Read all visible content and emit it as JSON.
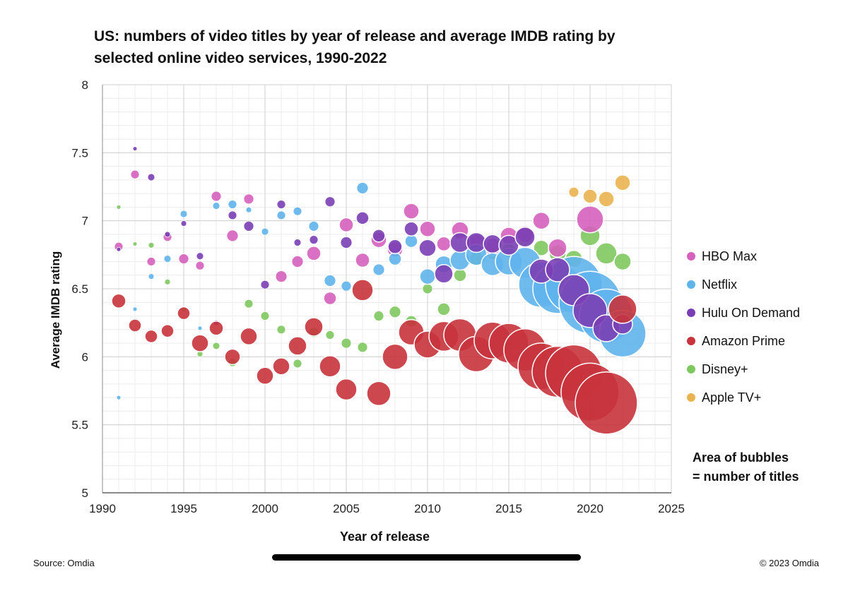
{
  "chart_data": {
    "type": "scatter",
    "subtype": "bubble",
    "title_line1": "US: numbers of video titles by year of release and average IMDB rating by",
    "title_line2": "selected online video services, 1990-2022",
    "xlabel": "Year of release",
    "ylabel": "Average IMDB rating",
    "xlim": [
      1990,
      2025
    ],
    "ylim": [
      5,
      8
    ],
    "xticks": [
      "1990",
      "1995",
      "2000",
      "2005",
      "2010",
      "2015",
      "2020",
      "2025"
    ],
    "yticks": [
      "5",
      "5.5",
      "6",
      "6.5",
      "7",
      "7.5",
      "8"
    ],
    "grid": true,
    "legend_position": "right",
    "note_line1": "Area of bubbles",
    "note_line2": "= number of titles",
    "series": [
      {
        "name": "HBO Max",
        "color": "#d561bd",
        "points": [
          [
            1991,
            6.81,
            6
          ],
          [
            1992,
            7.34,
            6
          ],
          [
            1993,
            6.7,
            6
          ],
          [
            1994,
            6.88,
            6
          ],
          [
            1995,
            6.72,
            7
          ],
          [
            1996,
            6.67,
            6
          ],
          [
            1997,
            7.18,
            7
          ],
          [
            1998,
            6.89,
            8
          ],
          [
            1999,
            7.16,
            7
          ],
          [
            2001,
            6.59,
            8
          ],
          [
            2002,
            6.7,
            8
          ],
          [
            2003,
            6.76,
            10
          ],
          [
            2004,
            6.43,
            9
          ],
          [
            2005,
            6.97,
            10
          ],
          [
            2006,
            6.71,
            10
          ],
          [
            2007,
            6.86,
            11
          ],
          [
            2008,
            6.79,
            11
          ],
          [
            2009,
            7.07,
            11
          ],
          [
            2010,
            6.94,
            11
          ],
          [
            2011,
            6.83,
            10
          ],
          [
            2012,
            6.93,
            12
          ],
          [
            2013,
            6.84,
            12
          ],
          [
            2014,
            6.81,
            12
          ],
          [
            2015,
            6.89,
            12
          ],
          [
            2016,
            6.9,
            12
          ],
          [
            2017,
            7.0,
            12
          ],
          [
            2018,
            6.8,
            13
          ],
          [
            2020,
            7.01,
            19
          ]
        ]
      },
      {
        "name": "Netflix",
        "color": "#5fb4ec",
        "points": [
          [
            1991,
            5.7,
            3
          ],
          [
            1992,
            6.35,
            3
          ],
          [
            1993,
            6.59,
            4
          ],
          [
            1994,
            6.72,
            5
          ],
          [
            1995,
            7.05,
            5
          ],
          [
            1996,
            6.21,
            3
          ],
          [
            1997,
            7.11,
            5
          ],
          [
            1998,
            7.12,
            6
          ],
          [
            1999,
            7.08,
            4
          ],
          [
            2000,
            6.92,
            5
          ],
          [
            2001,
            7.04,
            6
          ],
          [
            2002,
            7.07,
            6
          ],
          [
            2003,
            6.96,
            7
          ],
          [
            2004,
            6.56,
            8
          ],
          [
            2005,
            6.52,
            7
          ],
          [
            2006,
            7.24,
            8
          ],
          [
            2007,
            6.64,
            8
          ],
          [
            2008,
            6.72,
            9
          ],
          [
            2009,
            6.85,
            9
          ],
          [
            2010,
            6.59,
            11
          ],
          [
            2011,
            6.68,
            12
          ],
          [
            2012,
            6.71,
            14
          ],
          [
            2013,
            6.75,
            15
          ],
          [
            2014,
            6.68,
            16
          ],
          [
            2015,
            6.7,
            19
          ],
          [
            2016,
            6.69,
            22
          ],
          [
            2017,
            6.53,
            32
          ],
          [
            2018,
            6.5,
            35
          ],
          [
            2019,
            6.53,
            40
          ],
          [
            2020,
            6.4,
            44
          ],
          [
            2021,
            6.3,
            38
          ],
          [
            2022,
            6.17,
            33
          ]
        ]
      },
      {
        "name": "Hulu On Demand",
        "color": "#7b3fb5",
        "points": [
          [
            1991,
            6.79,
            3
          ],
          [
            1992,
            7.53,
            3
          ],
          [
            1993,
            7.32,
            5
          ],
          [
            1994,
            6.9,
            4
          ],
          [
            1995,
            6.98,
            4
          ],
          [
            1996,
            6.74,
            5
          ],
          [
            1997,
            6.25,
            4
          ],
          [
            1998,
            7.04,
            6
          ],
          [
            1999,
            6.96,
            7
          ],
          [
            2000,
            6.53,
            6
          ],
          [
            2001,
            7.12,
            6
          ],
          [
            2002,
            6.84,
            5
          ],
          [
            2003,
            6.86,
            6
          ],
          [
            2004,
            7.14,
            7
          ],
          [
            2005,
            6.84,
            8
          ],
          [
            2006,
            7.02,
            9
          ],
          [
            2007,
            6.89,
            9
          ],
          [
            2008,
            6.81,
            10
          ],
          [
            2009,
            6.94,
            10
          ],
          [
            2010,
            6.8,
            12
          ],
          [
            2011,
            6.61,
            13
          ],
          [
            2012,
            6.84,
            14
          ],
          [
            2013,
            6.84,
            14
          ],
          [
            2014,
            6.83,
            13
          ],
          [
            2015,
            6.82,
            14
          ],
          [
            2016,
            6.88,
            14
          ],
          [
            2017,
            6.63,
            17
          ],
          [
            2018,
            6.64,
            17
          ],
          [
            2019,
            6.49,
            22
          ],
          [
            2020,
            6.34,
            24
          ],
          [
            2021,
            6.21,
            19
          ],
          [
            2022,
            6.24,
            14
          ]
        ]
      },
      {
        "name": "Amazon Prime",
        "color": "#c8333c",
        "points": [
          [
            1991,
            6.41,
            10
          ],
          [
            1992,
            6.23,
            9
          ],
          [
            1993,
            6.15,
            9
          ],
          [
            1994,
            6.19,
            9
          ],
          [
            1995,
            6.32,
            9
          ],
          [
            1996,
            6.1,
            12
          ],
          [
            1997,
            6.21,
            10
          ],
          [
            1998,
            6.0,
            11
          ],
          [
            1999,
            6.15,
            12
          ],
          [
            2000,
            5.86,
            12
          ],
          [
            2001,
            5.93,
            12
          ],
          [
            2002,
            6.08,
            13
          ],
          [
            2003,
            6.22,
            13
          ],
          [
            2004,
            5.93,
            15
          ],
          [
            2005,
            5.76,
            15
          ],
          [
            2006,
            6.49,
            15
          ],
          [
            2007,
            5.73,
            17
          ],
          [
            2008,
            6.0,
            18
          ],
          [
            2009,
            6.18,
            18
          ],
          [
            2010,
            6.09,
            19
          ],
          [
            2011,
            6.15,
            21
          ],
          [
            2012,
            6.16,
            23
          ],
          [
            2013,
            6.02,
            25
          ],
          [
            2014,
            6.12,
            26
          ],
          [
            2015,
            6.1,
            28
          ],
          [
            2016,
            6.05,
            30
          ],
          [
            2017,
            5.93,
            33
          ],
          [
            2018,
            5.89,
            36
          ],
          [
            2019,
            5.88,
            40
          ],
          [
            2020,
            5.74,
            41
          ],
          [
            2021,
            5.66,
            44
          ],
          [
            2022,
            6.35,
            20
          ]
        ]
      },
      {
        "name": "Disney+",
        "color": "#7fc860",
        "points": [
          [
            1991,
            7.1,
            3
          ],
          [
            1992,
            6.83,
            3
          ],
          [
            1993,
            6.82,
            4
          ],
          [
            1994,
            6.55,
            4
          ],
          [
            1995,
            6.35,
            4
          ],
          [
            1996,
            6.02,
            4
          ],
          [
            1997,
            6.08,
            5
          ],
          [
            1998,
            5.96,
            6
          ],
          [
            1999,
            6.39,
            6
          ],
          [
            2000,
            6.3,
            6
          ],
          [
            2001,
            6.2,
            6
          ],
          [
            2002,
            5.95,
            6
          ],
          [
            2003,
            6.18,
            7
          ],
          [
            2004,
            6.16,
            6
          ],
          [
            2005,
            6.1,
            7
          ],
          [
            2006,
            6.07,
            7
          ],
          [
            2007,
            6.3,
            7
          ],
          [
            2008,
            6.33,
            8
          ],
          [
            2009,
            6.26,
            8
          ],
          [
            2010,
            6.5,
            7
          ],
          [
            2011,
            6.35,
            9
          ],
          [
            2012,
            6.6,
            9
          ],
          [
            2013,
            6.72,
            10
          ],
          [
            2014,
            6.76,
            9
          ],
          [
            2015,
            6.78,
            10
          ],
          [
            2016,
            6.88,
            12
          ],
          [
            2017,
            6.8,
            11
          ],
          [
            2018,
            6.76,
            12
          ],
          [
            2019,
            6.72,
            12
          ],
          [
            2020,
            6.89,
            14
          ],
          [
            2021,
            6.76,
            15
          ],
          [
            2022,
            6.7,
            12
          ]
        ]
      },
      {
        "name": "Apple TV+",
        "color": "#eab350",
        "points": [
          [
            2019,
            7.21,
            7
          ],
          [
            2020,
            7.18,
            10
          ],
          [
            2021,
            7.16,
            11
          ],
          [
            2022,
            7.28,
            11
          ]
        ]
      }
    ]
  },
  "footer": {
    "source": "Source: Omdia",
    "copyright": "© 2023 Omdia"
  }
}
